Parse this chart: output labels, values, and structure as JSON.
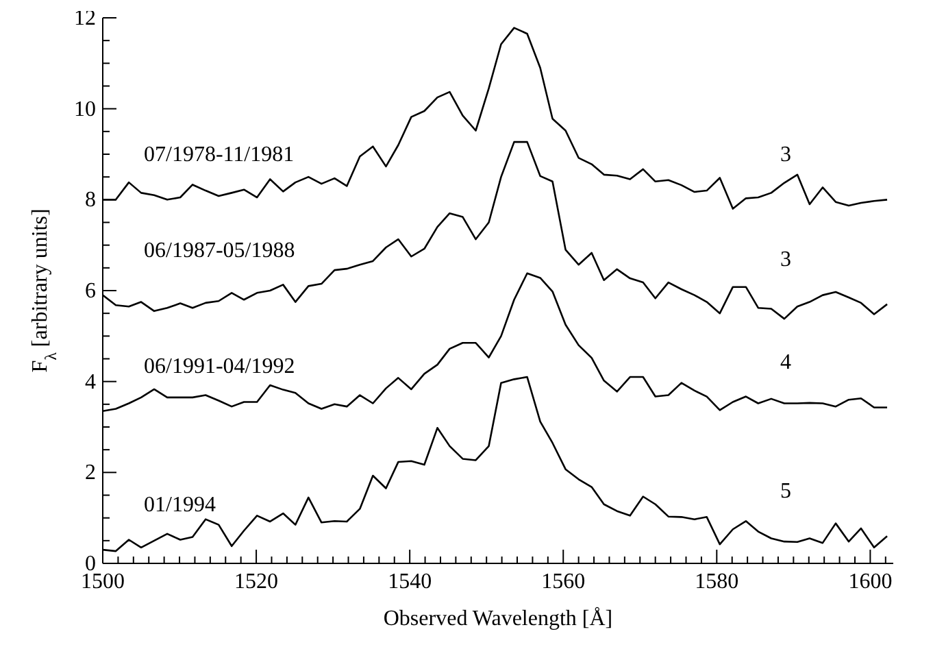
{
  "chart_data": {
    "type": "line",
    "xlabel": "Observed Wavelength [Å]",
    "ylabel": "F$_{λ}$ [arbitrary units]",
    "x": [
      1500,
      1501.7,
      1503.4,
      1505.0,
      1506.7,
      1508.4,
      1510.1,
      1511.7,
      1513.4,
      1515.1,
      1516.8,
      1518.4,
      1520.1,
      1521.8,
      1523.5,
      1525.1,
      1526.8,
      1528.5,
      1530.2,
      1531.8,
      1533.5,
      1535.2,
      1536.9,
      1538.5,
      1540.2,
      1541.9,
      1543.6,
      1545.2,
      1546.9,
      1548.6,
      1550.3,
      1551.9,
      1553.6,
      1555.3,
      1557.0,
      1558.6,
      1560.3,
      1562.0,
      1563.7,
      1565.3,
      1567.0,
      1568.7,
      1570.4,
      1572.0,
      1573.7,
      1575.4,
      1577.1,
      1578.7,
      1580.4,
      1582.1,
      1583.8,
      1585.4,
      1587.1,
      1588.8,
      1590.5,
      1592.1,
      1593.8,
      1595.5,
      1597.2,
      1598.8,
      1600.5,
      1602.2
    ],
    "series": [
      {
        "color": "#000000",
        "values": [
          8.0,
          8.0,
          8.38,
          8.15,
          8.1,
          8.0,
          8.05,
          8.33,
          8.2,
          8.08,
          8.15,
          8.22,
          8.05,
          8.45,
          8.18,
          8.38,
          8.5,
          8.35,
          8.47,
          8.3,
          8.95,
          9.17,
          8.73,
          9.2,
          9.82,
          9.95,
          10.25,
          10.37,
          9.85,
          9.52,
          10.45,
          11.42,
          11.78,
          11.65,
          10.9,
          9.78,
          9.52,
          8.92,
          8.78,
          8.55,
          8.53,
          8.45,
          8.67,
          8.4,
          8.43,
          8.32,
          8.17,
          8.2,
          8.48,
          7.8,
          8.03,
          8.05,
          8.15,
          8.37,
          8.55,
          7.9,
          8.27,
          7.95,
          7.87,
          7.93,
          7.97,
          8.0
        ]
      },
      {
        "color": "#000000",
        "values": [
          5.9,
          5.68,
          5.65,
          5.75,
          5.55,
          5.62,
          5.72,
          5.62,
          5.73,
          5.77,
          5.95,
          5.8,
          5.95,
          6.0,
          6.13,
          5.75,
          6.1,
          6.15,
          6.45,
          6.48,
          6.57,
          6.65,
          6.95,
          7.13,
          6.75,
          6.92,
          7.4,
          7.7,
          7.62,
          7.13,
          7.5,
          8.5,
          9.27,
          9.27,
          8.52,
          8.4,
          6.9,
          6.57,
          6.83,
          6.23,
          6.47,
          6.27,
          6.18,
          5.83,
          6.18,
          6.03,
          5.9,
          5.75,
          5.5,
          6.08,
          6.08,
          5.62,
          5.6,
          5.38,
          5.65,
          5.75,
          5.9,
          5.97,
          5.85,
          5.73,
          5.48,
          5.7
        ]
      },
      {
        "color": "#000000",
        "values": [
          3.35,
          3.4,
          3.52,
          3.65,
          3.83,
          3.65,
          3.65,
          3.65,
          3.7,
          3.58,
          3.45,
          3.55,
          3.55,
          3.92,
          3.82,
          3.75,
          3.52,
          3.4,
          3.5,
          3.45,
          3.7,
          3.52,
          3.85,
          4.08,
          3.83,
          4.17,
          4.37,
          4.72,
          4.85,
          4.85,
          4.53,
          5.0,
          5.8,
          6.38,
          6.28,
          5.98,
          5.25,
          4.8,
          4.52,
          4.02,
          3.78,
          4.1,
          4.1,
          3.67,
          3.7,
          3.97,
          3.8,
          3.67,
          3.37,
          3.55,
          3.67,
          3.52,
          3.62,
          3.52,
          3.52,
          3.53,
          3.52,
          3.45,
          3.6,
          3.63,
          3.43,
          3.43
        ]
      },
      {
        "color": "#000000",
        "values": [
          0.3,
          0.27,
          0.52,
          0.35,
          0.5,
          0.65,
          0.52,
          0.58,
          0.97,
          0.85,
          0.38,
          0.72,
          1.05,
          0.92,
          1.1,
          0.85,
          1.45,
          0.9,
          0.93,
          0.92,
          1.2,
          1.93,
          1.65,
          2.23,
          2.25,
          2.17,
          2.98,
          2.58,
          2.3,
          2.27,
          2.58,
          3.97,
          4.05,
          4.1,
          3.12,
          2.65,
          2.07,
          1.85,
          1.68,
          1.3,
          1.15,
          1.05,
          1.47,
          1.3,
          1.03,
          1.02,
          0.97,
          1.02,
          0.42,
          0.75,
          0.93,
          0.7,
          0.55,
          0.48,
          0.47,
          0.55,
          0.45,
          0.88,
          0.48,
          0.77,
          0.35,
          0.6
        ]
      }
    ],
    "xlim": [
      1500,
      1603
    ],
    "xticks": [
      1500,
      {
        "value": 1502,
        "label": null
      },
      {
        "value": 1504,
        "label": null
      },
      {
        "value": 1506,
        "label": null
      },
      {
        "value": 1508,
        "label": null
      },
      {
        "value": 1510,
        "label": null
      },
      {
        "value": 1512,
        "label": null
      },
      {
        "value": 1514,
        "label": null
      },
      {
        "value": 1516,
        "label": null
      },
      {
        "value": 1518,
        "label": null
      },
      1520,
      {
        "value": 1522,
        "label": null
      },
      {
        "value": 1524,
        "label": null
      },
      {
        "value": 1526,
        "label": null
      },
      {
        "value": 1528,
        "label": null
      },
      {
        "value": 1530,
        "label": null
      },
      {
        "value": 1532,
        "label": null
      },
      {
        "value": 1534,
        "label": null
      },
      {
        "value": 1536,
        "label": null
      },
      {
        "value": 1538,
        "label": null
      },
      1540,
      {
        "value": 1542,
        "label": null
      },
      {
        "value": 1544,
        "label": null
      },
      {
        "value": 1546,
        "label": null
      },
      {
        "value": 1548,
        "label": null
      },
      {
        "value": 1550,
        "label": null
      },
      {
        "value": 1552,
        "label": null
      },
      {
        "value": 1554,
        "label": null
      },
      {
        "value": 1556,
        "label": null
      },
      {
        "value": 1558,
        "label": null
      },
      1560,
      {
        "value": 1562,
        "label": null
      },
      {
        "value": 1564,
        "label": null
      },
      {
        "value": 1566,
        "label": null
      },
      {
        "value": 1568,
        "label": null
      },
      {
        "value": 1570,
        "label": null
      },
      {
        "value": 1572,
        "label": null
      },
      {
        "value": 1574,
        "label": null
      },
      {
        "value": 1576,
        "label": null
      },
      {
        "value": 1578,
        "label": null
      },
      1580,
      {
        "value": 1582,
        "label": null
      },
      {
        "value": 1584,
        "label": null
      },
      {
        "value": 1586,
        "label": null
      },
      {
        "value": 1588,
        "label": null
      },
      {
        "value": 1590,
        "label": null
      },
      {
        "value": 1592,
        "label": null
      },
      {
        "value": 1594,
        "label": null
      },
      {
        "value": 1596,
        "label": null
      },
      {
        "value": 1598,
        "label": null
      },
      1600,
      {
        "value": 1602,
        "label": null
      }
    ],
    "ylim": [
      0,
      12
    ],
    "yticks": [
      0,
      {
        "value": 0.5,
        "label": null
      },
      {
        "value": 1,
        "label": null
      },
      {
        "value": 1.5,
        "label": null
      },
      2,
      {
        "value": 2.5,
        "label": null
      },
      {
        "value": 3,
        "label": null
      },
      {
        "value": 3.5,
        "label": null
      },
      4,
      {
        "value": 4.5,
        "label": null
      },
      {
        "value": 5,
        "label": null
      },
      {
        "value": 5.5,
        "label": null
      },
      6,
      {
        "value": 6.5,
        "label": null
      },
      {
        "value": 7,
        "label": null
      },
      {
        "value": 7.5,
        "label": null
      },
      8,
      {
        "value": 8.5,
        "label": null
      },
      {
        "value": 9,
        "label": null
      },
      {
        "value": 9.5,
        "label": null
      },
      10,
      {
        "value": 10.5,
        "label": null
      },
      {
        "value": 11,
        "label": null
      },
      {
        "value": 11.5,
        "label": null
      },
      12
    ],
    "annotations": [
      "07/1978-11/1981",
      "3",
      "06/1987-05/1988",
      "3",
      "06/1991-04/1992",
      "4",
      "01/1994",
      "5"
    ],
    "grid": false,
    "legend": false,
    "marker": "none",
    "line_style": "solid"
  }
}
